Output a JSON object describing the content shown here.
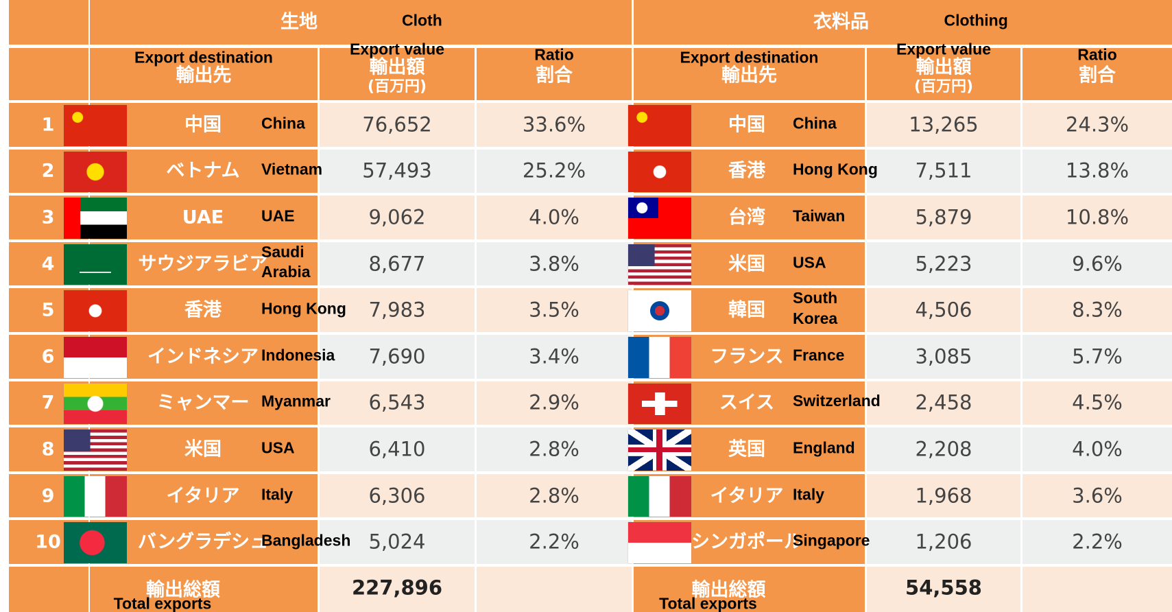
{
  "sections": [
    {
      "title_ja": "生地",
      "title_en": "Cloth",
      "headers": {
        "destination_en": "Export destination",
        "destination_ja": "輸出先",
        "value_en": "Export value",
        "value_ja": "輸出額",
        "unit": "(百万円)",
        "ratio_en": "Ratio",
        "ratio_ja": "割合"
      },
      "rows": [
        {
          "rank": "1",
          "name_ja": "中国",
          "name_en": "China",
          "value": "76,652",
          "ratio": "33.6%"
        },
        {
          "rank": "2",
          "name_ja": "ベトナム",
          "name_en": "Vietnam",
          "value": "57,493",
          "ratio": "25.2%"
        },
        {
          "rank": "3",
          "name_ja": "UAE",
          "name_en": "UAE",
          "value": "9,062",
          "ratio": "4.0%"
        },
        {
          "rank": "4",
          "name_ja": "サウジアラビア",
          "name_en": "Saudi Arabia",
          "value": "8,677",
          "ratio": "3.8%"
        },
        {
          "rank": "5",
          "name_ja": "香港",
          "name_en": "Hong Kong",
          "value": "7,983",
          "ratio": "3.5%"
        },
        {
          "rank": "6",
          "name_ja": "インドネシア",
          "name_en": "Indonesia",
          "value": "7,690",
          "ratio": "3.4%"
        },
        {
          "rank": "7",
          "name_ja": "ミャンマー",
          "name_en": "Myanmar",
          "value": "6,543",
          "ratio": "2.9%"
        },
        {
          "rank": "8",
          "name_ja": "米国",
          "name_en": "USA",
          "value": "6,410",
          "ratio": "2.8%"
        },
        {
          "rank": "9",
          "name_ja": "イタリア",
          "name_en": "Italy",
          "value": "6,306",
          "ratio": "2.8%"
        },
        {
          "rank": "10",
          "name_ja": "バングラデシュ",
          "name_en": "Bangladesh",
          "value": "5,024",
          "ratio": "2.2%"
        }
      ],
      "total": {
        "label_ja": "輸出総額",
        "label_en": "Total exports",
        "value": "227,896"
      }
    },
    {
      "title_ja": "衣料品",
      "title_en": "Clothing",
      "headers": {
        "destination_en": "Export destination",
        "destination_ja": "輸出先",
        "value_en": "Export value",
        "value_ja": "輸出額",
        "unit": "(百万円)",
        "ratio_en": "Ratio",
        "ratio_ja": "割合"
      },
      "rows": [
        {
          "name_ja": "中国",
          "name_en": "China",
          "value": "13,265",
          "ratio": "24.3%"
        },
        {
          "name_ja": "香港",
          "name_en": "Hong Kong",
          "value": "7,511",
          "ratio": "13.8%"
        },
        {
          "name_ja": "台湾",
          "name_en": "Taiwan",
          "value": "5,879",
          "ratio": "10.8%"
        },
        {
          "name_ja": "米国",
          "name_en": "USA",
          "value": "5,223",
          "ratio": "9.6%"
        },
        {
          "name_ja": "韓国",
          "name_en": "South Korea",
          "value": "4,506",
          "ratio": "8.3%"
        },
        {
          "name_ja": "フランス",
          "name_en": "France",
          "value": "3,085",
          "ratio": "5.7%"
        },
        {
          "name_ja": "スイス",
          "name_en": "Switzerland",
          "value": "2,458",
          "ratio": "4.5%"
        },
        {
          "name_ja": "英国",
          "name_en": "England",
          "value": "2,208",
          "ratio": "4.0%"
        },
        {
          "name_ja": "イタリア",
          "name_en": "Italy",
          "value": "1,968",
          "ratio": "3.6%"
        },
        {
          "name_ja": "シンガポール",
          "name_en": "Singapore",
          "value": "1,206",
          "ratio": "2.2%"
        }
      ],
      "total": {
        "label_ja": "輸出総額",
        "label_en": "Total exports",
        "value": "54,558"
      }
    }
  ]
}
